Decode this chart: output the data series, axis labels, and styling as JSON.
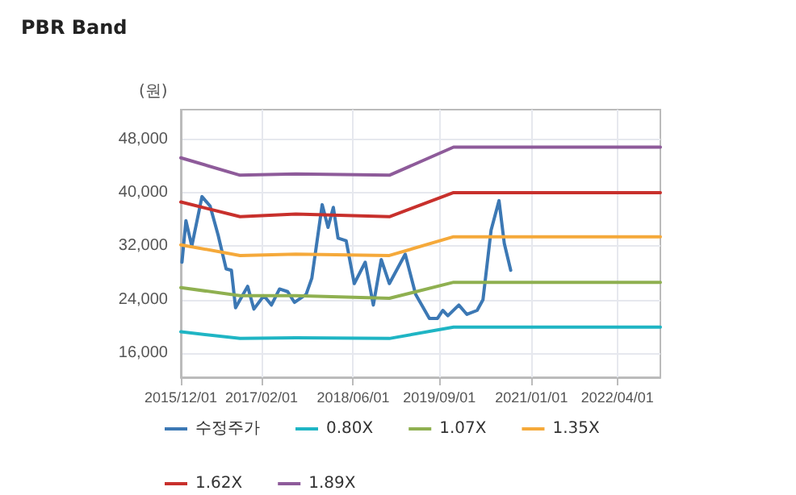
{
  "chart_data": {
    "type": "line",
    "title": "PBR Band",
    "ylabel": "(원)",
    "xlim": [
      "2015-12-01",
      "2022-11-15"
    ],
    "ylim": [
      12400,
      52400
    ],
    "xticks": [
      {
        "value": "2015-12-01",
        "label": "2015/12/01"
      },
      {
        "value": "2017-02-01",
        "label": "2017/02/01"
      },
      {
        "value": "2018-06-01",
        "label": "2018/06/01"
      },
      {
        "value": "2019-09-01",
        "label": "2019/09/01"
      },
      {
        "value": "2021-01-01",
        "label": "2021/01/01"
      },
      {
        "value": "2022-04-01",
        "label": "2022/04/01"
      }
    ],
    "yticks": [
      {
        "value": 16000,
        "label": "16,000"
      },
      {
        "value": 24000,
        "label": "24,000"
      },
      {
        "value": 32000,
        "label": "32,000"
      },
      {
        "value": 40000,
        "label": "40,000"
      },
      {
        "value": 48000,
        "label": "48,000"
      }
    ],
    "grid": true,
    "legend": "bottom",
    "marker": "none",
    "line_style": "solid",
    "series": [
      {
        "name": "수정주가",
        "color": "#3c78b4",
        "x": [
          "2015-12-07",
          "2015-12-28",
          "2016-01-28",
          "2016-03-22",
          "2016-05-04",
          "2016-06-16",
          "2016-07-28",
          "2016-08-25",
          "2016-09-16",
          "2016-11-19",
          "2016-12-22",
          "2017-02-13",
          "2017-03-25",
          "2017-05-07",
          "2017-06-19",
          "2017-07-25",
          "2017-09-25",
          "2017-10-25",
          "2017-12-19",
          "2018-01-19",
          "2018-02-16",
          "2018-03-13",
          "2018-04-25",
          "2018-06-07",
          "2018-08-04",
          "2018-09-16",
          "2018-10-28",
          "2018-12-10",
          "2019-03-04",
          "2019-04-28",
          "2019-07-10",
          "2019-08-22",
          "2019-09-19",
          "2019-10-16",
          "2019-12-13",
          "2020-01-25",
          "2020-03-19",
          "2020-04-19",
          "2020-06-01",
          "2020-07-13",
          "2020-08-10",
          "2020-09-13"
        ],
        "values": [
          29600,
          35800,
          32000,
          39400,
          38000,
          33600,
          28600,
          28400,
          22800,
          26000,
          22600,
          24600,
          23200,
          25600,
          25200,
          23600,
          24800,
          27200,
          38200,
          34800,
          37800,
          33200,
          32800,
          26400,
          29600,
          23200,
          30000,
          26400,
          30800,
          24800,
          21200,
          21200,
          22400,
          21600,
          23200,
          21800,
          22400,
          24000,
          34400,
          38800,
          32400,
          28400
        ]
      },
      {
        "name": "0.80X",
        "color": "#1fb5c4",
        "x": [
          "2015-12-01",
          "2016-10-10",
          "2017-08-01",
          "2018-12-10",
          "2019-11-15",
          "2022-11-15"
        ],
        "values": [
          19200,
          18200,
          18300,
          18200,
          19900,
          19900
        ]
      },
      {
        "name": "1.07X",
        "color": "#8fb050",
        "x": [
          "2015-12-01",
          "2016-10-10",
          "2017-08-01",
          "2018-12-10",
          "2019-11-15",
          "2022-11-15"
        ],
        "values": [
          25800,
          24600,
          24600,
          24200,
          26600,
          26600
        ]
      },
      {
        "name": "1.35X",
        "color": "#f5a93a",
        "x": [
          "2015-12-01",
          "2016-10-10",
          "2017-08-01",
          "2018-12-10",
          "2019-11-15",
          "2022-11-15"
        ],
        "values": [
          32200,
          30600,
          30800,
          30600,
          33400,
          33400
        ]
      },
      {
        "name": "1.62X",
        "color": "#c8302c",
        "x": [
          "2015-12-01",
          "2016-10-10",
          "2017-08-01",
          "2018-12-10",
          "2019-11-15",
          "2022-11-15"
        ],
        "values": [
          38600,
          36400,
          36800,
          36400,
          40000,
          40000
        ]
      },
      {
        "name": "1.89X",
        "color": "#8e5b9a",
        "x": [
          "2015-12-01",
          "2016-10-10",
          "2017-08-01",
          "2018-12-10",
          "2019-11-15",
          "2022-11-15"
        ],
        "values": [
          45200,
          42600,
          42800,
          42600,
          46800,
          46800
        ]
      }
    ]
  }
}
